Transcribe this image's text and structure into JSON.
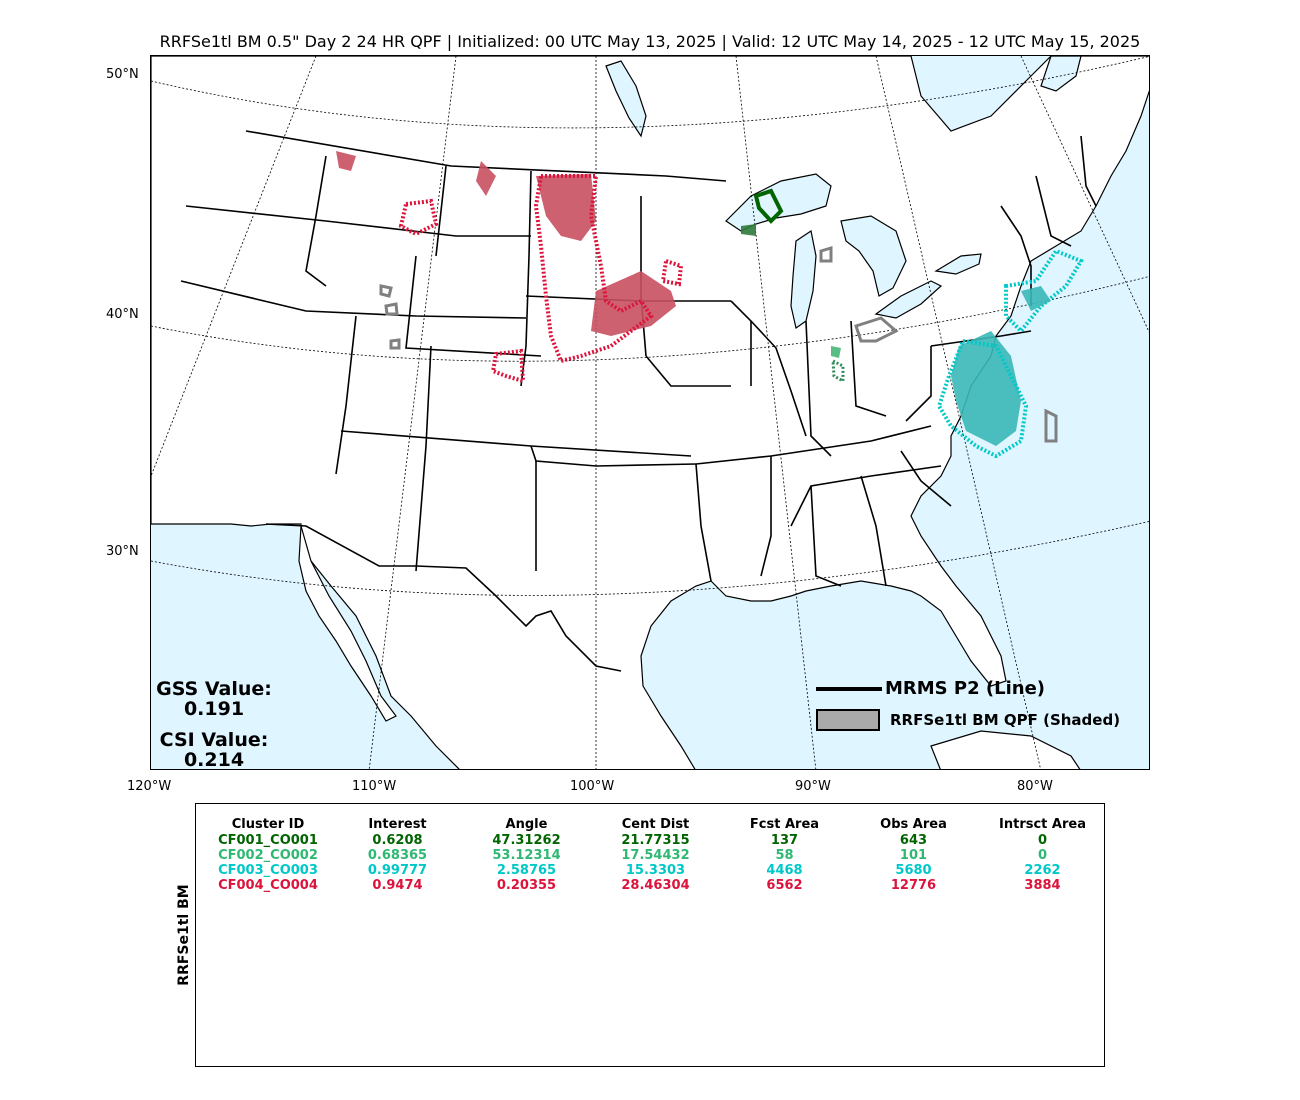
{
  "title": "RRFSe1tl BM 0.5\" Day 2 24 HR QPF | Initialized: 00 UTC May 13, 2025 | Valid: 12 UTC May 14, 2025 - 12 UTC May 15, 2025",
  "map": {
    "lat_labels": [
      "50°N",
      "40°N",
      "30°N"
    ],
    "lon_labels": [
      "120°W",
      "110°W",
      "100°W",
      "90°W",
      "80°W"
    ],
    "ocean_color": "#dff5ff",
    "land_color": "#ffffff"
  },
  "stats": {
    "gss_label": "GSS Value:",
    "gss_value": "0.191",
    "csi_label": "CSI Value:",
    "csi_value": "0.214"
  },
  "legend": {
    "obs_label": "MRMS P2 (Line)",
    "fcst_label": "RRFSe1tl BM QPF (Shaded)",
    "fcst_swatch_color": "#aaaaaa",
    "unmatched_color": "#808080"
  },
  "table": {
    "ylabel": "RRFSe1tl BM",
    "headers": [
      "Cluster ID",
      "Interest",
      "Angle",
      "Cent Dist",
      "Fcst Area",
      "Obs Area",
      "Intrsct Area"
    ],
    "rows": [
      {
        "color": "#006400",
        "cells": [
          "CF001_CO001",
          "0.6208",
          "47.31262",
          "21.77315",
          "137",
          "643",
          "0"
        ]
      },
      {
        "color": "#2eb872",
        "cells": [
          "CF002_CO002",
          "0.68365",
          "53.12314",
          "17.54432",
          "58",
          "101",
          "0"
        ]
      },
      {
        "color": "#00c8c8",
        "cells": [
          "CF003_CO003",
          "0.99777",
          "2.58765",
          "15.3303",
          "4468",
          "5680",
          "2262"
        ]
      },
      {
        "color": "#dc143c",
        "cells": [
          "CF004_CO004",
          "0.9474",
          "0.20355",
          "28.46304",
          "6562",
          "12776",
          "3884"
        ]
      }
    ]
  }
}
